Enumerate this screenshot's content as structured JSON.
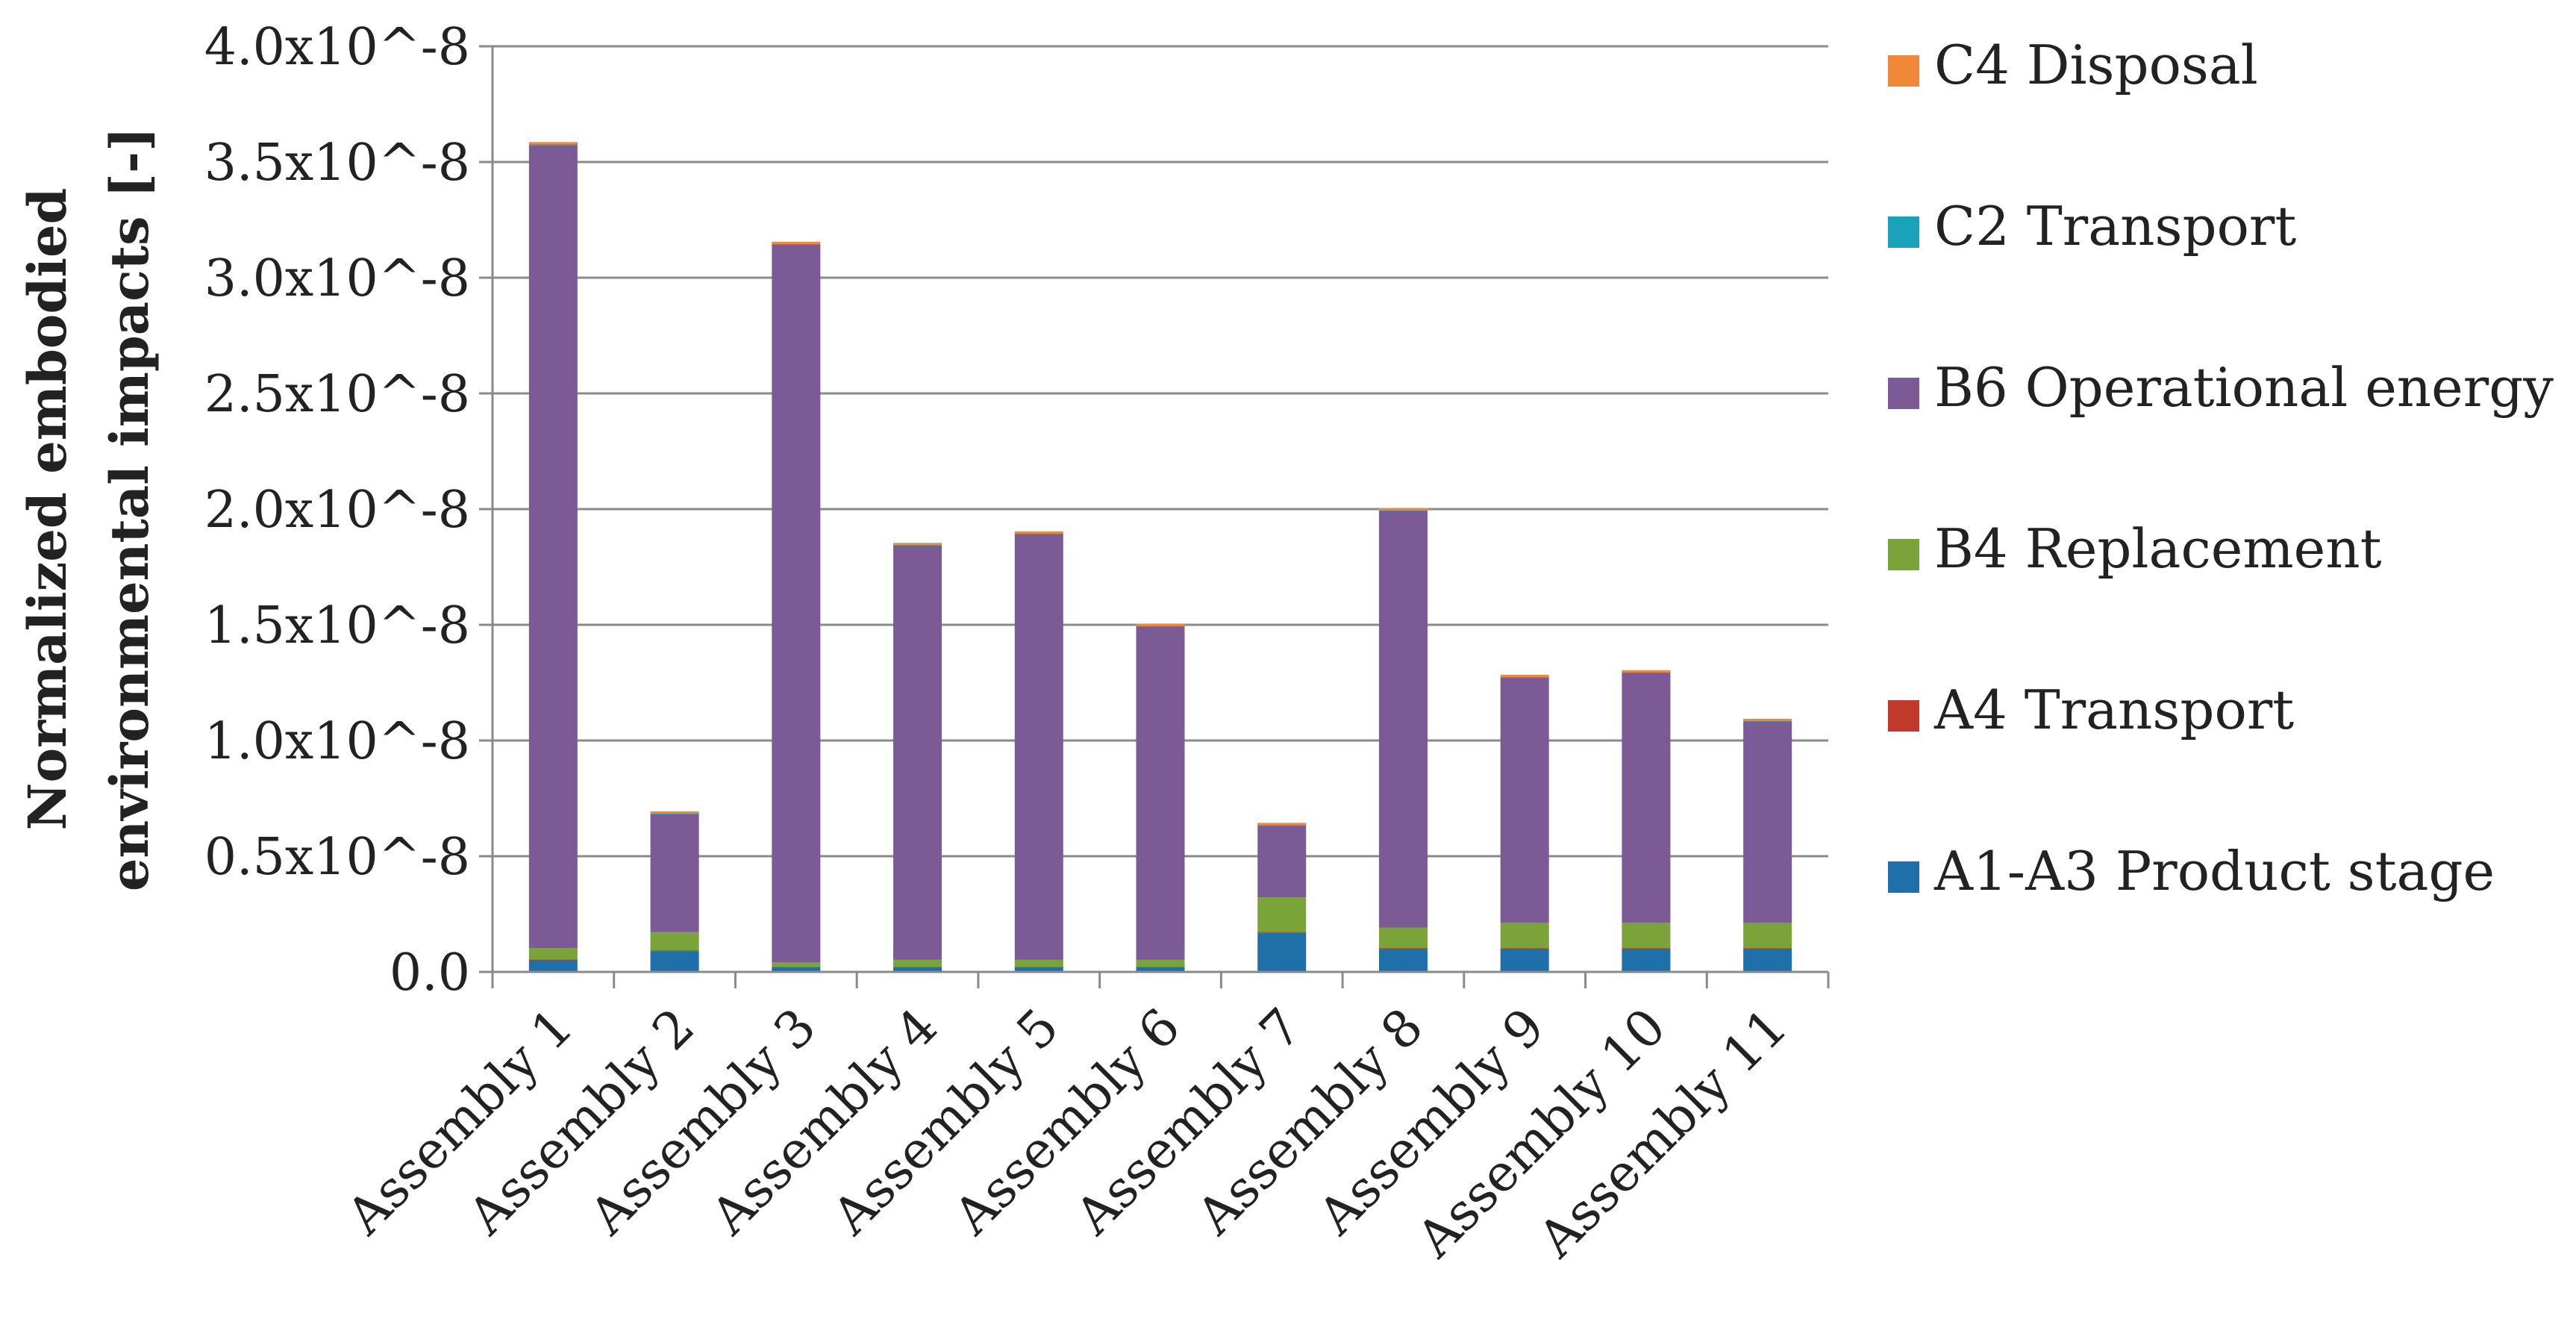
{
  "chart_data": {
    "type": "bar",
    "stacked": true,
    "title": "",
    "xlabel": "",
    "ylabel_lines": [
      "Normalized embodied",
      "environmental impacts [-]"
    ],
    "ylim": [
      0,
      4.0
    ],
    "y_unit_note": "x10^-8",
    "y_ticks": [
      0,
      0.5,
      1.0,
      1.5,
      2.0,
      2.5,
      3.0,
      3.5,
      4.0
    ],
    "y_tick_labels": [
      "0.0",
      "0.5x10^-8",
      "1.0x10^-8",
      "1.5x10^-8",
      "2.0x10^-8",
      "2.5x10^-8",
      "3.0x10^-8",
      "3.5x10^-8",
      "4.0x10^-8"
    ],
    "grid": true,
    "legend_position": "right",
    "categories": [
      "Assembly 1",
      "Assembly 2",
      "Assembly 3",
      "Assembly 4",
      "Assembly 5",
      "Assembly 6",
      "Assembly 7",
      "Assembly 8",
      "Assembly 9",
      "Assembly 10",
      "Assembly 11"
    ],
    "series": [
      {
        "name": "A1-A3 Product stage",
        "color": "#1f6fa8",
        "values": [
          0.05,
          0.09,
          0.02,
          0.02,
          0.02,
          0.02,
          0.17,
          0.1,
          0.1,
          0.1,
          0.1
        ]
      },
      {
        "name": "A4 Transport",
        "color": "#c0392b",
        "values": [
          0.003,
          0.002,
          0.002,
          0.002,
          0.002,
          0.002,
          0.002,
          0.002,
          0.002,
          0.002,
          0.002
        ]
      },
      {
        "name": "B4 Replacement",
        "color": "#7aa33a",
        "values": [
          0.05,
          0.08,
          0.02,
          0.03,
          0.03,
          0.03,
          0.15,
          0.09,
          0.11,
          0.11,
          0.11
        ]
      },
      {
        "name": "B6 Operational energy",
        "color": "#7b5a96",
        "values": [
          3.47,
          0.51,
          3.1,
          1.79,
          1.84,
          1.44,
          0.31,
          1.8,
          1.06,
          1.08,
          0.87
        ]
      },
      {
        "name": "C2 Transport",
        "color": "#1aa3b8",
        "values": [
          0.003,
          0.002,
          0.003,
          0.002,
          0.002,
          0.002,
          0.002,
          0.002,
          0.002,
          0.002,
          0.002
        ]
      },
      {
        "name": "C4 Disposal",
        "color": "#f0883a",
        "values": [
          0.01,
          0.01,
          0.01,
          0.01,
          0.01,
          0.01,
          0.01,
          0.01,
          0.01,
          0.01,
          0.01
        ]
      }
    ],
    "legend_order": [
      "C4 Disposal",
      "C2 Transport",
      "B6 Operational energy",
      "B4 Replacement",
      "A4 Transport",
      "A1-A3 Product stage"
    ]
  }
}
